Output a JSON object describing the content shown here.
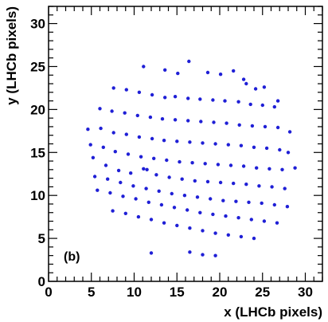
{
  "chart_data": {
    "type": "scatter",
    "xlabel": "x (LHCb pixels)",
    "ylabel": "y (LHCb pixels)",
    "panel_label": "(b)",
    "xlim": [
      0,
      32
    ],
    "ylim": [
      0,
      32
    ],
    "x_ticks": [
      0,
      5,
      10,
      15,
      20,
      25,
      30
    ],
    "y_ticks": [
      0,
      5,
      10,
      15,
      20,
      25,
      30
    ],
    "marker_color": "#1f1fd6",
    "grid": false,
    "series": [
      {
        "x": [
          16.4,
          11.1,
          13.6,
          15.1,
          18.6,
          20.1,
          21.6,
          22.8,
          23.1,
          24.2,
          25.2,
          26.8,
          7.6,
          9.1,
          10.6,
          12.1,
          13.6,
          14.8,
          16.3,
          17.7,
          19.2,
          20.6,
          22.2,
          23.6,
          25.0,
          26.4,
          6.0,
          7.4,
          8.9,
          10.4,
          11.9,
          13.3,
          14.8,
          16.3,
          17.8,
          19.3,
          20.8,
          22.3,
          23.8,
          25.3,
          26.8,
          28.2,
          4.6,
          6.1,
          7.6,
          9.1,
          10.6,
          12.1,
          13.5,
          15.0,
          16.5,
          18.0,
          19.5,
          21.0,
          22.5,
          24.0,
          25.5,
          27.0,
          28.0,
          4.9,
          6.4,
          7.8,
          9.3,
          10.8,
          12.3,
          13.8,
          15.3,
          16.8,
          18.3,
          19.8,
          21.3,
          22.8,
          24.3,
          25.8,
          27.3,
          28.8,
          5.2,
          6.7,
          8.2,
          9.6,
          11.1,
          11.5,
          12.6,
          14.1,
          15.6,
          17.1,
          18.6,
          20.1,
          21.6,
          23.1,
          24.6,
          26.1,
          27.6,
          5.4,
          6.9,
          8.4,
          9.9,
          11.4,
          12.9,
          14.4,
          15.9,
          17.4,
          18.9,
          20.4,
          21.9,
          23.4,
          24.9,
          26.4,
          27.9,
          5.7,
          7.2,
          8.7,
          10.2,
          11.7,
          13.2,
          14.7,
          16.2,
          17.7,
          19.2,
          20.7,
          22.2,
          23.7,
          25.2,
          26.7,
          7.5,
          9.0,
          10.5,
          12.0,
          13.5,
          15.0,
          16.5,
          18.0,
          19.5,
          21.0,
          22.5,
          24.0,
          12.0,
          16.5,
          18.0,
          19.5
        ],
        "y": [
          25.6,
          25.0,
          24.6,
          24.2,
          24.3,
          24.1,
          24.5,
          23.5,
          23.0,
          22.4,
          22.6,
          21.0,
          22.5,
          22.3,
          22.0,
          21.7,
          21.4,
          21.5,
          21.3,
          21.2,
          21.1,
          21.0,
          20.9,
          20.6,
          20.5,
          20.3,
          20.1,
          19.8,
          19.6,
          19.3,
          19.1,
          18.9,
          18.8,
          18.7,
          18.6,
          18.5,
          18.4,
          18.2,
          18.1,
          18.0,
          17.9,
          17.4,
          17.7,
          17.8,
          17.3,
          17.1,
          16.8,
          16.6,
          16.4,
          16.3,
          16.2,
          16.1,
          16.0,
          15.9,
          15.8,
          15.6,
          15.5,
          15.3,
          15.0,
          15.9,
          15.6,
          15.1,
          14.8,
          14.5,
          14.3,
          14.1,
          13.9,
          13.8,
          13.7,
          13.6,
          13.5,
          13.4,
          13.2,
          13.1,
          13.0,
          13.2,
          14.4,
          13.5,
          12.9,
          12.6,
          13.1,
          13.0,
          12.4,
          12.1,
          11.9,
          11.7,
          11.6,
          11.5,
          11.4,
          11.3,
          11.1,
          11.0,
          10.8,
          12.2,
          11.9,
          11.5,
          11.1,
          10.8,
          10.5,
          10.2,
          10.0,
          9.8,
          9.6,
          9.4,
          9.3,
          9.2,
          9.1,
          8.9,
          8.7,
          10.6,
          10.3,
          9.9,
          9.6,
          9.2,
          8.9,
          8.6,
          8.3,
          8.0,
          7.8,
          7.6,
          7.4,
          7.2,
          7.0,
          6.8,
          8.2,
          7.9,
          7.5,
          7.2,
          6.8,
          6.5,
          6.2,
          5.9,
          5.6,
          5.4,
          5.2,
          5.0,
          3.3,
          3.4,
          3.1,
          3.0
        ]
      }
    ]
  }
}
